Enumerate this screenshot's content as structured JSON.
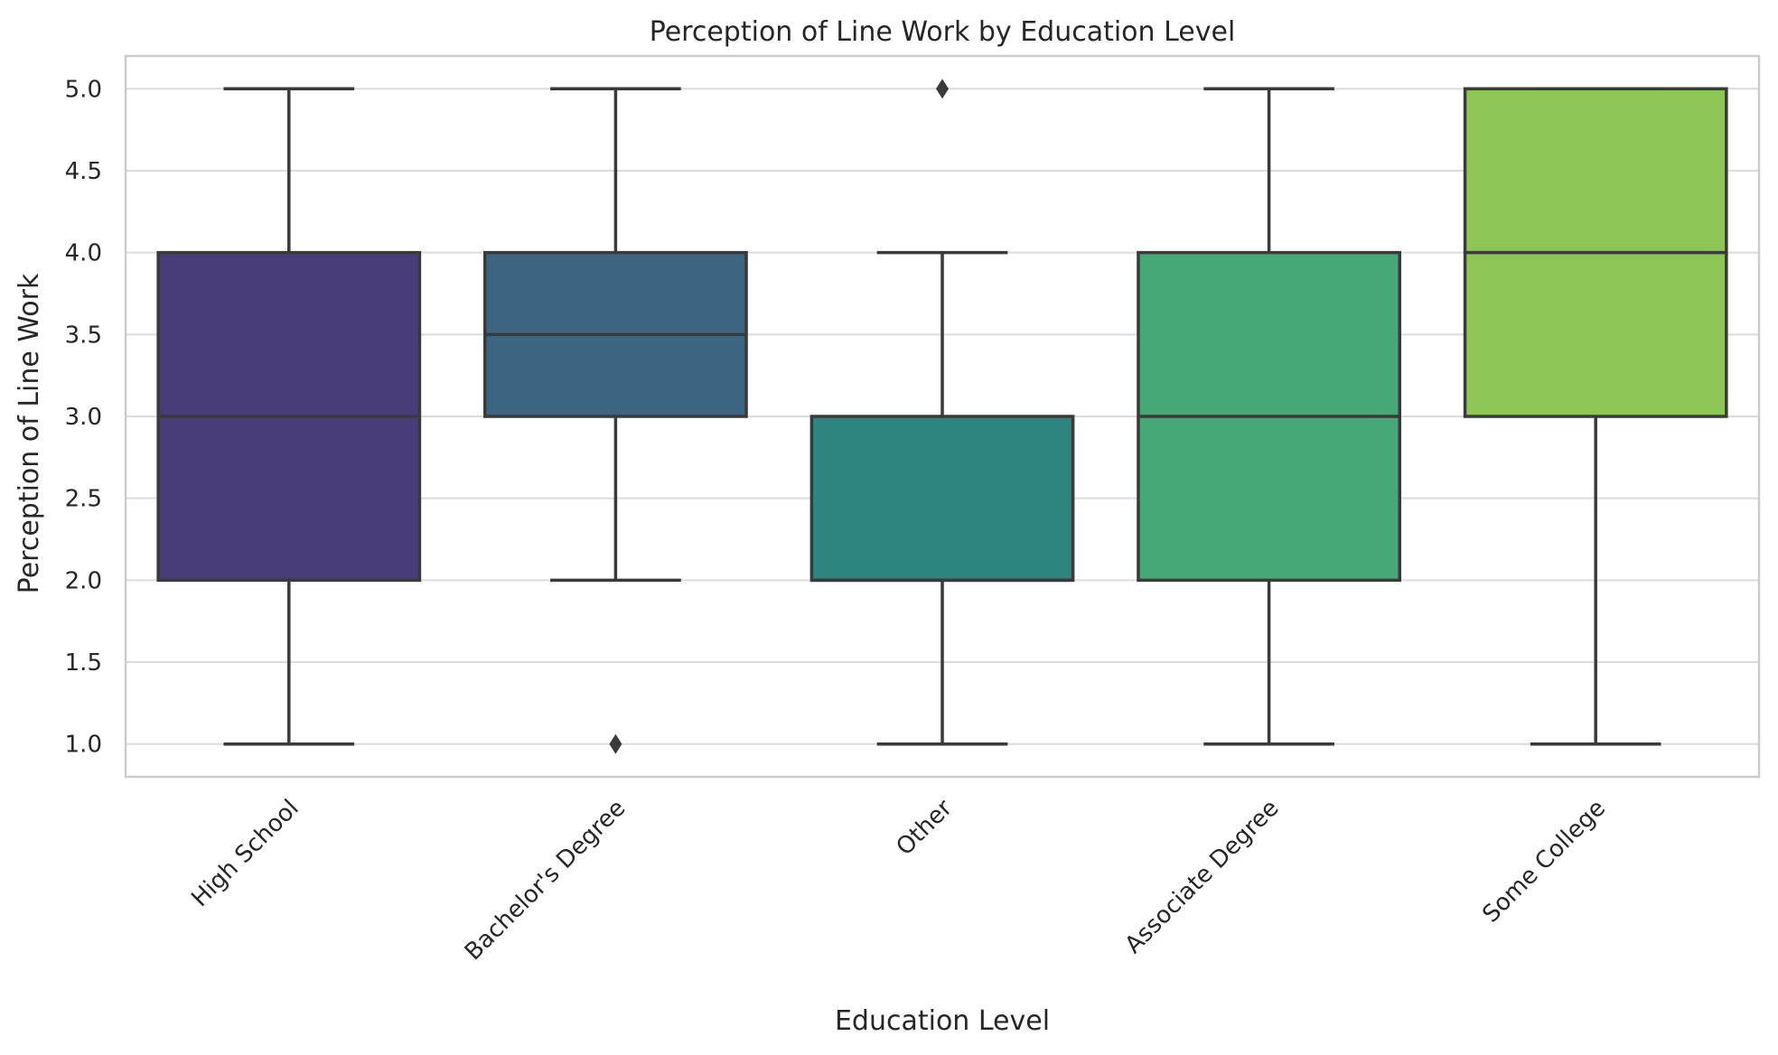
{
  "chart_data": {
    "type": "box",
    "title": "Perception of Line Work by Education Level",
    "xlabel": "Education Level",
    "ylabel": "Perception of Line Work",
    "ylim": [
      0.8,
      5.2
    ],
    "yticks": [
      "1.0",
      "1.5",
      "2.0",
      "2.5",
      "3.0",
      "3.5",
      "4.0",
      "4.5",
      "5.0"
    ],
    "grid": "horizontal",
    "categories": [
      "High School",
      "Bachelor's Degree",
      "Other",
      "Associate Degree",
      "Some College"
    ],
    "boxes": [
      {
        "category": "High School",
        "whisker_low": 1,
        "q1": 2,
        "median": 3,
        "q3": 4,
        "whisker_high": 5,
        "outliers": [],
        "color": "#483d78"
      },
      {
        "category": "Bachelor's Degree",
        "whisker_low": 2,
        "q1": 3,
        "median": 3.5,
        "q3": 4,
        "whisker_high": 5,
        "outliers": [
          1
        ],
        "color": "#3d6480"
      },
      {
        "category": "Other",
        "whisker_low": 1,
        "q1": 2,
        "median": 2,
        "q3": 3,
        "whisker_high": 4,
        "outliers": [
          5
        ],
        "color": "#2e847e"
      },
      {
        "category": "Associate Degree",
        "whisker_low": 1,
        "q1": 2,
        "median": 3,
        "q3": 4,
        "whisker_high": 5,
        "outliers": [],
        "color": "#46a877"
      },
      {
        "category": "Some College",
        "whisker_low": 1,
        "q1": 3,
        "median": 4,
        "q3": 5,
        "whisker_high": 5,
        "outliers": [],
        "color": "#8dc556"
      }
    ]
  }
}
